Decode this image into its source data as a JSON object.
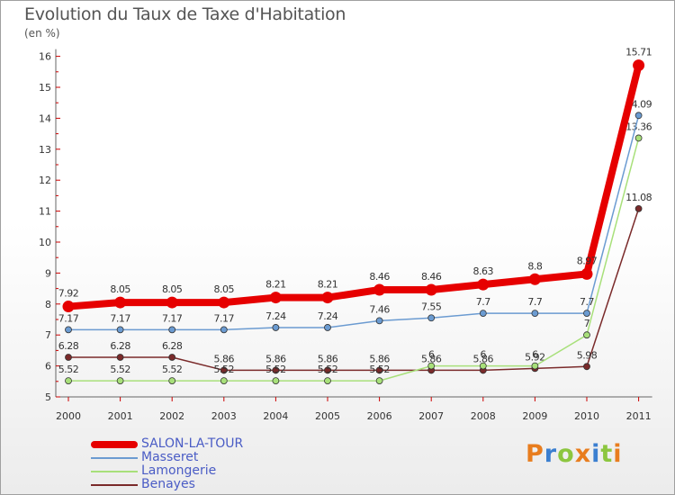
{
  "header": {
    "title": "Evolution du Taux de Taxe d'Habitation",
    "unit": "(en %)"
  },
  "logo": {
    "text": "Proxiti",
    "colors": [
      "#e87d1e",
      "#3b7fd0",
      "#8cc63f",
      "#e87d1e",
      "#3b7fd0",
      "#8cc63f",
      "#e87d1e"
    ]
  },
  "chart_data": {
    "type": "line",
    "title": "Evolution du Taux de Taxe d'Habitation",
    "ylabel": "(en %)",
    "xlabel": "",
    "x": [
      "2000",
      "2001",
      "2002",
      "2003",
      "2004",
      "2005",
      "2006",
      "2007",
      "2008",
      "2009",
      "2010",
      "2011"
    ],
    "ylim": [
      5,
      16
    ],
    "yticks": [
      "5",
      "6",
      "7",
      "8",
      "9",
      "10",
      "11",
      "12",
      "13",
      "14",
      "15",
      "16"
    ],
    "grid": false,
    "legend_position": "bottom-left",
    "series": [
      {
        "name": "SALON-LA-TOUR",
        "color": "#e60000",
        "bold": true,
        "values": [
          7.92,
          8.05,
          8.05,
          8.05,
          8.21,
          8.21,
          8.46,
          8.46,
          8.63,
          8.8,
          8.97,
          15.71
        ],
        "labels": [
          "7.92",
          "8.05",
          "8.05",
          "8.05",
          "8.21",
          "8.21",
          "8.46",
          "8.46",
          "8.63",
          "8.8",
          "8.97",
          "15.71"
        ]
      },
      {
        "name": "Masseret",
        "color": "#6b9bd1",
        "bold": false,
        "values": [
          7.17,
          7.17,
          7.17,
          7.17,
          7.24,
          7.24,
          7.46,
          7.55,
          7.7,
          7.7,
          7.7,
          14.09
        ],
        "labels": [
          "7.17",
          "7.17",
          "7.17",
          "7.17",
          "7.24",
          "7.24",
          "7.46",
          "7.55",
          "7.7",
          "7.7",
          "7.7",
          "14.09"
        ]
      },
      {
        "name": "Lamongerie",
        "color": "#a8e07a",
        "bold": false,
        "values": [
          5.52,
          5.52,
          5.52,
          5.52,
          5.52,
          5.52,
          5.52,
          6,
          6,
          6,
          7,
          13.36
        ],
        "labels": [
          "5.52",
          "5.52",
          "5.52",
          "5.52",
          "5.52",
          "5.52",
          "5.52",
          "6",
          "6",
          "6",
          "7",
          "13.36"
        ]
      },
      {
        "name": "Benayes",
        "color": "#7a2a2a",
        "bold": false,
        "values": [
          6.28,
          6.28,
          6.28,
          5.86,
          5.86,
          5.86,
          5.86,
          5.86,
          5.86,
          5.92,
          5.98,
          11.08
        ],
        "labels": [
          "6.28",
          "6.28",
          "6.28",
          "5.86",
          "5.86",
          "5.86",
          "5.86",
          "5.86",
          "5.86",
          "5.92",
          "5.98",
          "11.08"
        ]
      }
    ]
  }
}
